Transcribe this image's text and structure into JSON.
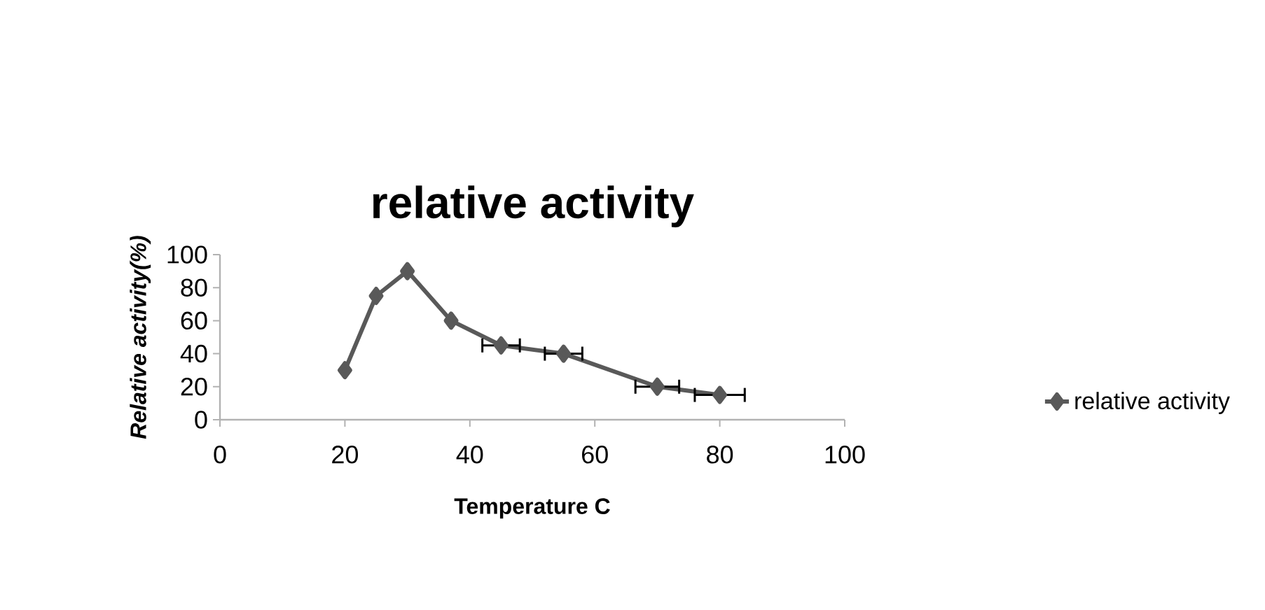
{
  "chart_data": {
    "type": "line",
    "title": "relative activity",
    "xlabel": "Temperature C",
    "ylabel": "Relative activity(%)",
    "x": [
      20,
      25,
      30,
      37,
      45,
      55,
      70,
      80
    ],
    "series": [
      {
        "name": "relative activity",
        "color": "#595959",
        "values": [
          30,
          75,
          90,
          60,
          45,
          40,
          20,
          15
        ],
        "xerrors": [
          null,
          null,
          null,
          null,
          3,
          3,
          3.5,
          4
        ]
      }
    ],
    "xlim": [
      0,
      100
    ],
    "xticks": [
      0,
      20,
      40,
      60,
      80,
      100
    ],
    "ylim": [
      0,
      100
    ],
    "yticks": [
      0,
      20,
      40,
      60,
      80,
      100
    ],
    "grid": false,
    "legend": "right",
    "marker": "diamond",
    "line_style": "solid"
  }
}
